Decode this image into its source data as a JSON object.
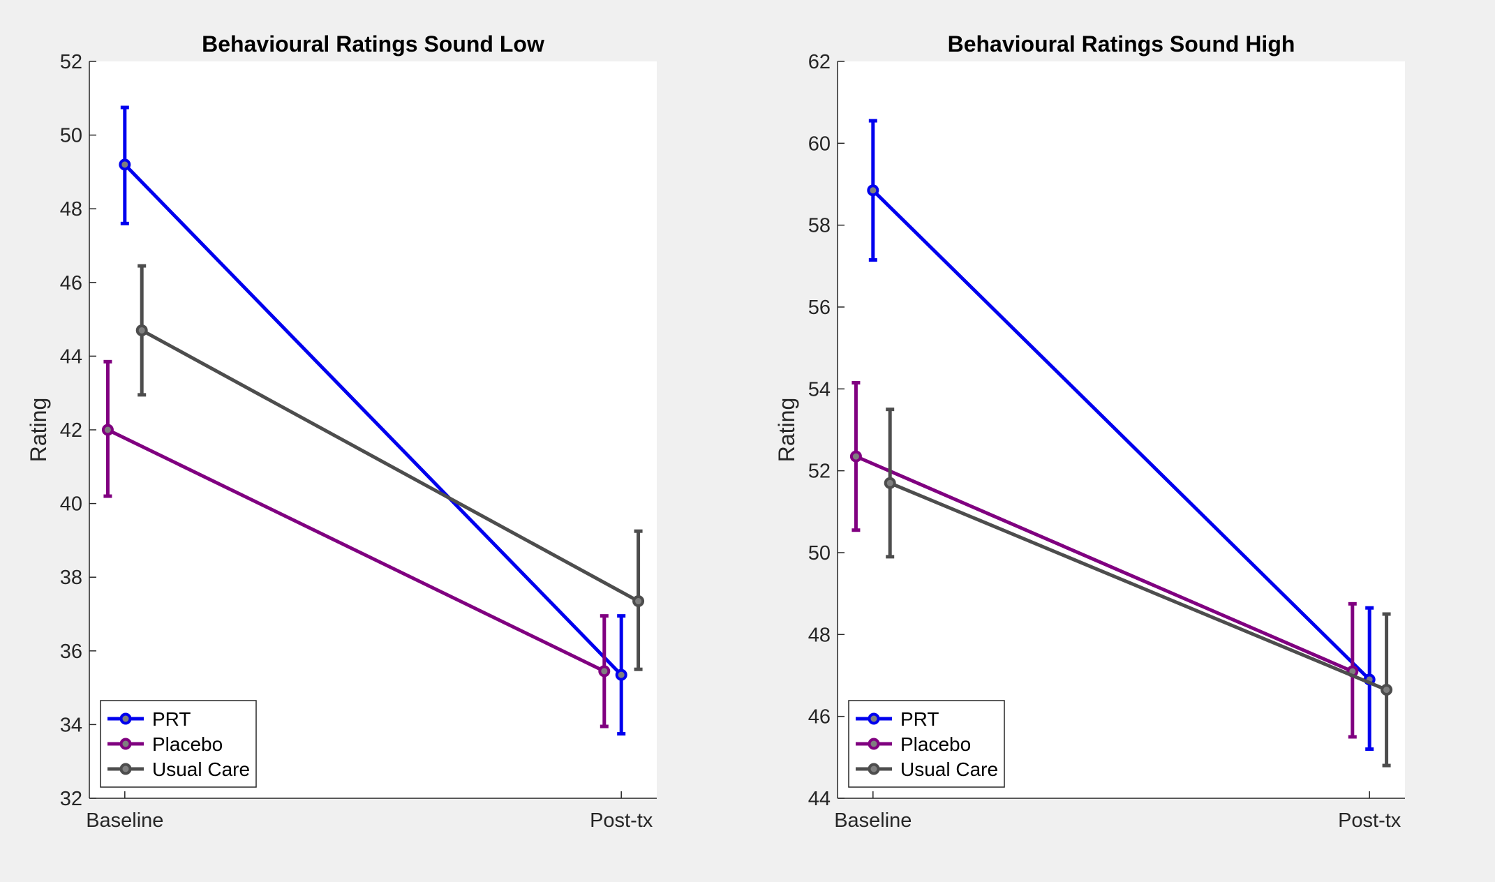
{
  "colors": {
    "background": "#f0f0f0",
    "axes_background": "#ffffff",
    "axis": "#262626",
    "PRT": "#0000ee",
    "Placebo": "#800080",
    "Usual Care": "#4d4d4d"
  },
  "chart_data": [
    {
      "type": "line",
      "title": "Behavioural Ratings Sound Low",
      "xlabel": "",
      "ylabel": "Rating",
      "categories": [
        "Baseline",
        "Post-tx"
      ],
      "ylim": [
        32,
        52
      ],
      "yticks": [
        32,
        34,
        36,
        38,
        40,
        42,
        44,
        46,
        48,
        50,
        52
      ],
      "grid": false,
      "legend": "bottom-left",
      "series": [
        {
          "name": "PRT",
          "color": "#0000ee",
          "offset": 0,
          "values": [
            49.2,
            35.35
          ],
          "err_low": [
            47.6,
            33.75
          ],
          "err_high": [
            50.75,
            36.95
          ]
        },
        {
          "name": "Placebo",
          "color": "#800080",
          "offset": -0.03,
          "values": [
            42.0,
            35.45
          ],
          "err_low": [
            40.2,
            33.95
          ],
          "err_high": [
            43.85,
            36.95
          ]
        },
        {
          "name": "Usual Care",
          "color": "#4d4d4d",
          "offset": 0.03,
          "values": [
            44.7,
            37.35
          ],
          "err_low": [
            42.95,
            35.5
          ],
          "err_high": [
            46.45,
            39.25
          ]
        }
      ]
    },
    {
      "type": "line",
      "title": "Behavioural Ratings Sound High",
      "xlabel": "",
      "ylabel": "Rating",
      "categories": [
        "Baseline",
        "Post-tx"
      ],
      "ylim": [
        44,
        62
      ],
      "yticks": [
        44,
        46,
        48,
        50,
        52,
        54,
        56,
        58,
        60,
        62
      ],
      "grid": false,
      "legend": "bottom-left",
      "series": [
        {
          "name": "PRT",
          "color": "#0000ee",
          "offset": 0,
          "values": [
            58.85,
            46.9
          ],
          "err_low": [
            57.15,
            45.2
          ],
          "err_high": [
            60.55,
            48.65
          ]
        },
        {
          "name": "Placebo",
          "color": "#800080",
          "offset": -0.03,
          "values": [
            52.35,
            47.1
          ],
          "err_low": [
            50.55,
            45.5
          ],
          "err_high": [
            54.15,
            48.75
          ]
        },
        {
          "name": "Usual Care",
          "color": "#4d4d4d",
          "offset": 0.03,
          "values": [
            51.7,
            46.65
          ],
          "err_low": [
            49.9,
            44.8
          ],
          "err_high": [
            53.5,
            48.5
          ]
        }
      ]
    }
  ]
}
